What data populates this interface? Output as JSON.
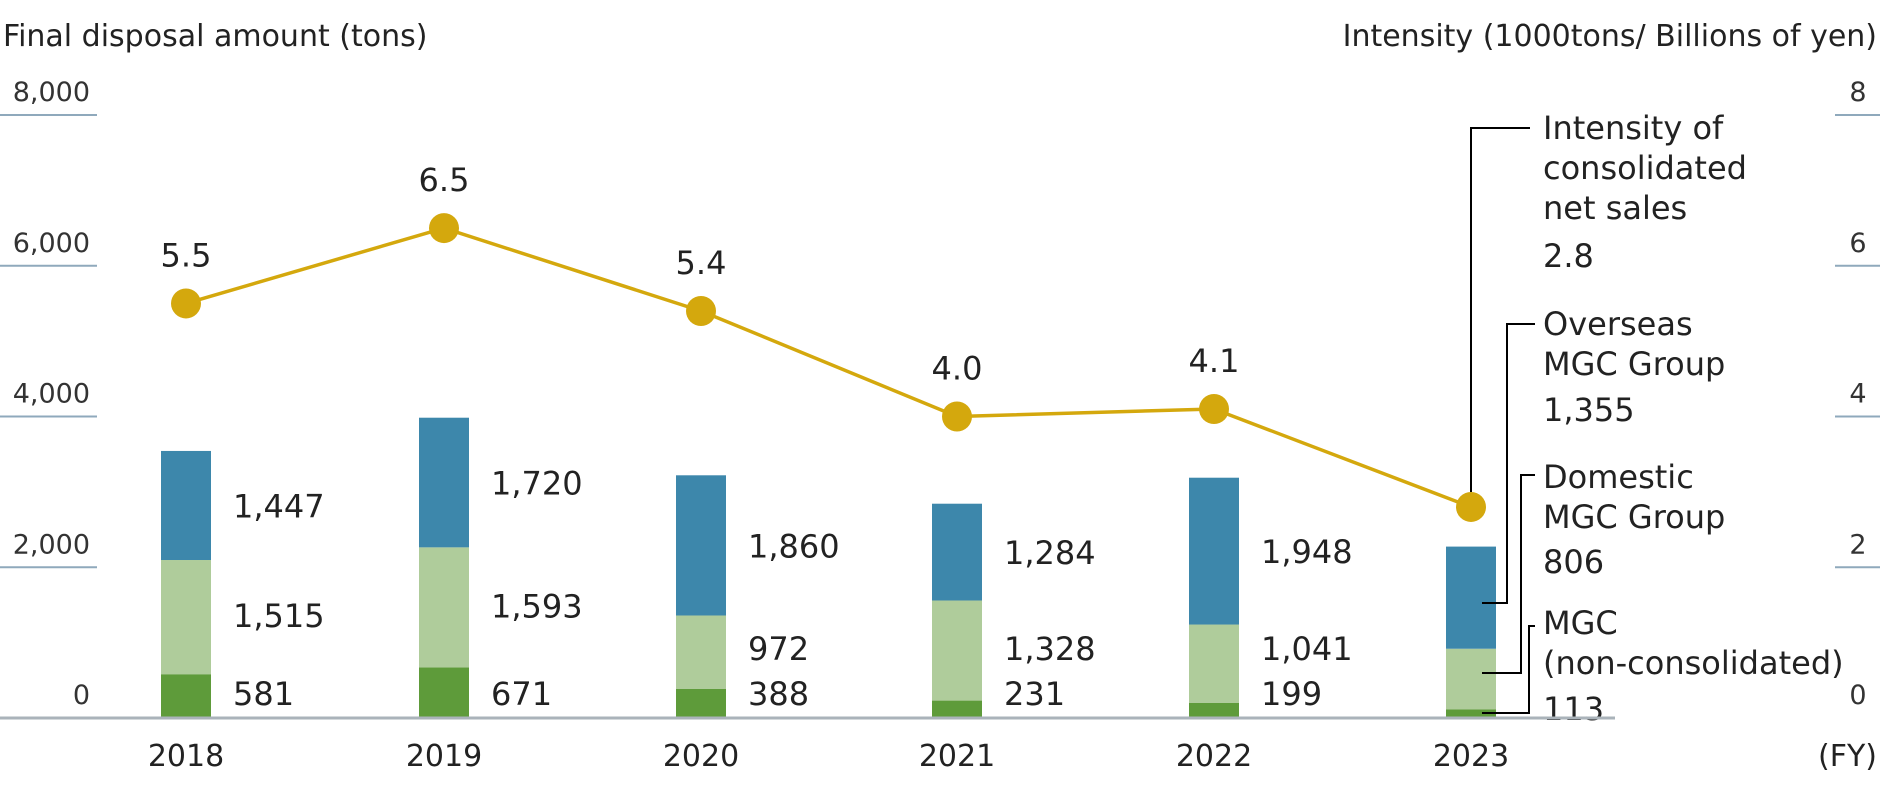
{
  "chart_data": {
    "type": "bar",
    "stacked": true,
    "categories": [
      "2018",
      "2019",
      "2020",
      "2021",
      "2022",
      "2023"
    ],
    "x_unit": "(FY)",
    "left_axis": {
      "title": "Final disposal amount (tons)",
      "ticks": [
        "0",
        "2,000",
        "4,000",
        "6,000",
        "8,000"
      ],
      "tick_values": [
        0,
        2000,
        4000,
        6000,
        8000
      ],
      "ylim": [
        0,
        8400
      ]
    },
    "right_axis": {
      "title": "Intensity (1000tons/ Billions of yen)",
      "ticks": [
        "0",
        "2",
        "4",
        "6",
        "8"
      ],
      "tick_values": [
        0,
        2,
        4,
        6,
        8
      ],
      "ylim": [
        0,
        8.4
      ]
    },
    "series": [
      {
        "name": "MGC (non-consolidated)",
        "legend_lines": [
          "MGC",
          "(non-consolidated)"
        ],
        "legend_value": "113",
        "color": "#5e9b3a",
        "values": [
          581,
          671,
          388,
          231,
          199,
          113
        ],
        "labels": [
          "581",
          "671",
          "388",
          "231",
          "199",
          "113"
        ]
      },
      {
        "name": "Domestic MGC Group",
        "legend_lines": [
          "Domestic",
          "MGC Group"
        ],
        "legend_value": "806",
        "color": "#afcc9b",
        "values": [
          1515,
          1593,
          972,
          1328,
          1041,
          806
        ],
        "labels": [
          "1,515",
          "1,593",
          "972",
          "1,328",
          "1,041",
          "806"
        ]
      },
      {
        "name": "Overseas MGC Group",
        "legend_lines": [
          "Overseas",
          "MGC Group"
        ],
        "legend_value": "1,355",
        "color": "#3d87ab",
        "values": [
          1447,
          1720,
          1860,
          1284,
          1948,
          1355
        ],
        "labels": [
          "1,447",
          "1,720",
          "1,860",
          "1,284",
          "1,948",
          "1,355"
        ]
      }
    ],
    "line_series": {
      "name": "Intensity of consolidated net sales",
      "legend_lines": [
        "Intensity of",
        "consolidated",
        "net sales"
      ],
      "legend_value": "2.8",
      "axis": "right",
      "color": "#d4a80d",
      "values": [
        5.5,
        6.5,
        5.4,
        4.0,
        4.1,
        2.8
      ],
      "labels": [
        "5.5",
        "6.5",
        "5.4",
        "4.0",
        "4.1",
        "2.8"
      ]
    }
  }
}
